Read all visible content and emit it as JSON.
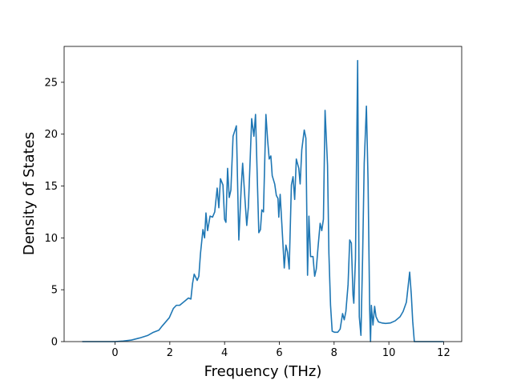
{
  "chart_data": {
    "type": "line",
    "x_label": "Frequency (THz)",
    "y_label": "Density of States",
    "xlim": [
      -1.86,
      12.66
    ],
    "ylim": [
      0,
      28.46
    ],
    "xticks": [
      0,
      2,
      4,
      6,
      8,
      10,
      12
    ],
    "yticks": [
      0,
      5,
      10,
      15,
      20,
      25
    ],
    "grid": false,
    "series": [
      {
        "color": "#1f77b4",
        "x": [
          -1.2,
          0,
          0.3,
          0.6,
          0.9,
          1.2,
          1.4,
          1.6,
          1.72,
          1.98,
          2.13,
          2.24,
          2.36,
          2.59,
          2.68,
          2.77,
          2.83,
          2.89,
          3.0,
          3.06,
          3.12,
          3.21,
          3.27,
          3.32,
          3.38,
          3.47,
          3.56,
          3.64,
          3.73,
          3.79,
          3.85,
          3.94,
          4.0,
          4.05,
          4.11,
          4.17,
          4.23,
          4.31,
          4.43,
          4.52,
          4.61,
          4.66,
          4.75,
          4.81,
          4.87,
          4.99,
          5.07,
          5.13,
          5.25,
          5.31,
          5.36,
          5.42,
          5.51,
          5.57,
          5.63,
          5.69,
          5.74,
          5.83,
          5.89,
          5.95,
          5.98,
          6.03,
          6.09,
          6.18,
          6.24,
          6.3,
          6.36,
          6.44,
          6.5,
          6.56,
          6.62,
          6.71,
          6.76,
          6.82,
          6.91,
          6.97,
          7.03,
          7.08,
          7.14,
          7.23,
          7.29,
          7.35,
          7.41,
          7.49,
          7.55,
          7.61,
          7.67,
          7.76,
          7.81,
          7.87,
          7.93,
          8.02,
          8.13,
          8.22,
          8.31,
          8.37,
          8.43,
          8.51,
          8.57,
          8.63,
          8.69,
          8.72,
          8.78,
          8.86,
          8.92,
          8.98,
          9.04,
          9.1,
          9.18,
          9.24,
          9.3,
          9.33,
          9.36,
          9.42,
          9.48,
          9.53,
          9.62,
          9.74,
          9.88,
          10.06,
          10.23,
          10.41,
          10.52,
          10.64,
          10.76,
          10.82,
          10.87,
          10.93,
          12
        ],
        "values": [
          0,
          0,
          0.05,
          0.15,
          0.35,
          0.6,
          0.9,
          1.1,
          1.5,
          2.3,
          3.2,
          3.5,
          3.5,
          4.0,
          4.2,
          4.1,
          5.6,
          6.5,
          5.9,
          6.3,
          8.5,
          10.8,
          10.0,
          12.4,
          10.7,
          12.1,
          12.0,
          12.5,
          14.8,
          12.9,
          15.7,
          15.1,
          11.8,
          11.5,
          16.7,
          13.9,
          14.6,
          19.8,
          20.8,
          9.8,
          15.0,
          17.2,
          13.5,
          11.2,
          13.0,
          21.5,
          19.8,
          21.9,
          10.5,
          10.8,
          12.7,
          12.5,
          21.9,
          19.5,
          17.6,
          17.9,
          16.0,
          15.2,
          14.1,
          13.8,
          12.0,
          14.2,
          11.4,
          7.1,
          9.3,
          8.6,
          7.0,
          15.1,
          15.9,
          13.7,
          17.6,
          16.7,
          15.2,
          18.5,
          20.4,
          19.6,
          6.4,
          12.1,
          8.2,
          8.2,
          6.3,
          7.0,
          9.0,
          11.4,
          10.7,
          11.8,
          22.3,
          17.0,
          8.5,
          3.5,
          1.0,
          0.9,
          0.9,
          1.2,
          2.7,
          2.1,
          2.9,
          5.5,
          9.8,
          9.5,
          4.5,
          3.7,
          8.0,
          27.1,
          2.4,
          0.6,
          8.0,
          17.2,
          22.7,
          15.5,
          3.0,
          0,
          3.5,
          1.6,
          3.4,
          2.4,
          1.9,
          1.8,
          1.75,
          1.8,
          2.0,
          2.4,
          2.9,
          3.8,
          6.7,
          4.5,
          2.0,
          0,
          0
        ]
      }
    ]
  }
}
